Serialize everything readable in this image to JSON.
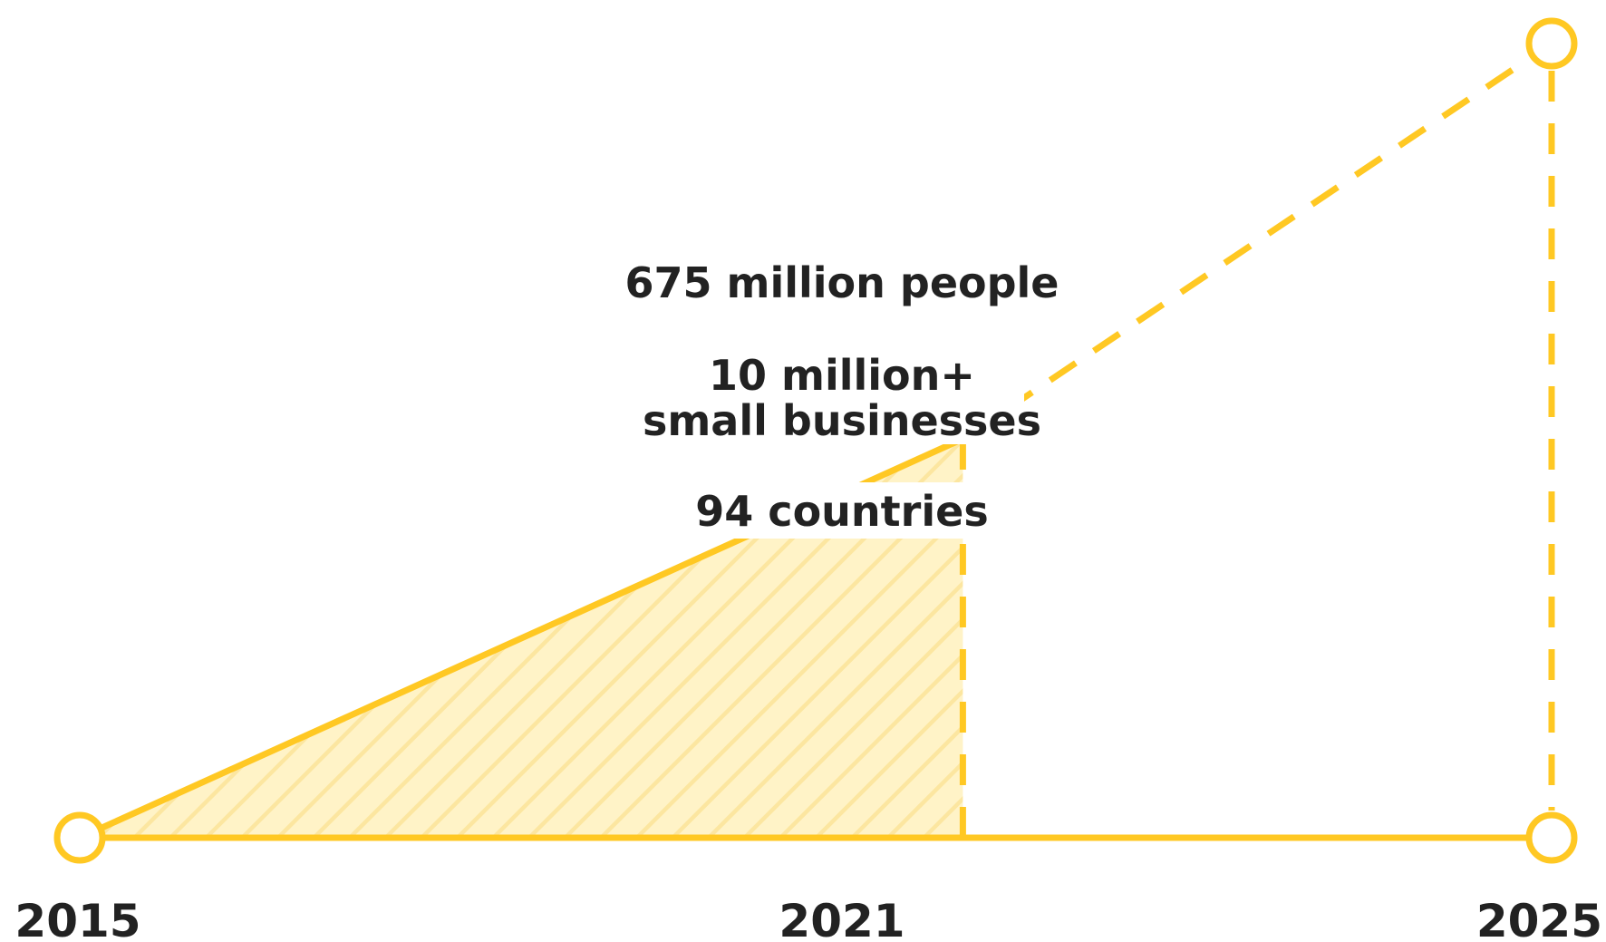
{
  "colors": {
    "accent": "#FFC823",
    "fill": "#FFF3C7",
    "hatch": "#FCE6A0",
    "text": "#222222"
  },
  "chart_data": {
    "type": "line",
    "title": "",
    "xlabel": "",
    "ylabel": "",
    "x": [
      2015,
      2021,
      2025
    ],
    "xlim": [
      2015,
      2025
    ],
    "series": [
      {
        "style": "solid",
        "x": [
          2015,
          2021
        ],
        "values": [
          0,
          1
        ]
      },
      {
        "style": "dashed",
        "x": [
          2021,
          2025
        ],
        "values": [
          1,
          2
        ]
      }
    ],
    "ylim": [
      0,
      2
    ],
    "shaded_area": {
      "x": [
        2015,
        2021
      ],
      "pattern": "diagonal-hatch"
    },
    "vertical_markers": [
      {
        "x": 2021,
        "style": "dashed"
      },
      {
        "x": 2025,
        "style": "dashed"
      }
    ],
    "annotations": [
      {
        "lines": [
          "675 million people"
        ]
      },
      {
        "lines": [
          "10 million+",
          "small businesses"
        ]
      },
      {
        "lines": [
          "94 countries"
        ]
      }
    ],
    "tick_labels": [
      "2015",
      "2021",
      "2025"
    ],
    "grid": false,
    "legend": "none"
  }
}
